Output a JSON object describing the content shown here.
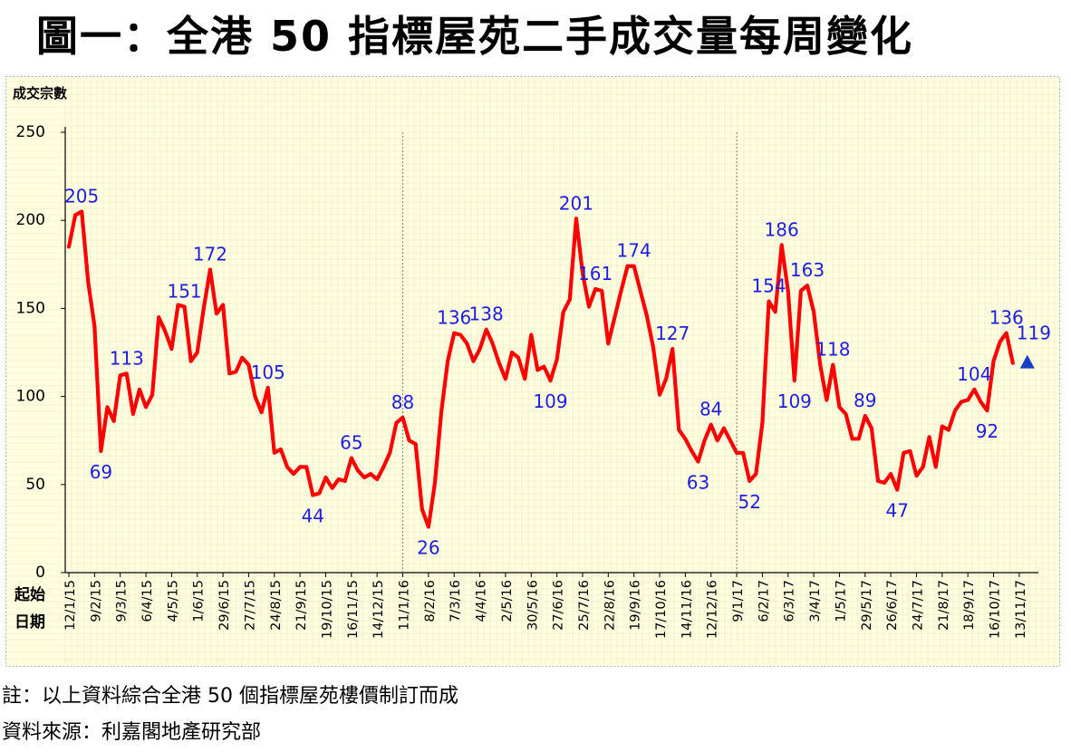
{
  "title": "圖一：全港 50 指標屋苑二手成交量每周變化",
  "notes": {
    "note": "註：以上資料綜合全港 50 個指標屋苑樓價制訂而成",
    "source": "資料來源：利嘉閣地產研究部"
  },
  "chart_data": {
    "type": "line",
    "ylabel": "成交宗數",
    "xlabel": "起始日期",
    "ylim": [
      0,
      250
    ],
    "yticks": [
      0,
      50,
      100,
      150,
      200,
      250
    ],
    "background_color": "#ffffe0",
    "line_color": "#ff0000",
    "label_color": "#1e1edc",
    "grid": true,
    "x_tick_labels": [
      "12/1/15",
      "9/2/15",
      "9/3/15",
      "6/4/15",
      "4/5/15",
      "1/6/15",
      "29/6/15",
      "27/7/15",
      "24/8/15",
      "21/9/15",
      "19/10/15",
      "16/11/15",
      "14/12/15",
      "11/1/16",
      "8/2/16",
      "7/3/16",
      "4/4/16",
      "2/5/16",
      "30/5/16",
      "27/6/16",
      "25/7/16",
      "22/8/16",
      "19/9/16",
      "17/10/16",
      "14/11/16",
      "12/12/16",
      "9/1/17",
      "6/2/17",
      "6/3/17",
      "3/4/17",
      "1/5/17",
      "29/5/17",
      "26/6/17",
      "24/7/17",
      "21/8/17",
      "18/9/17",
      "16/10/17",
      "13/11/17"
    ],
    "year_dividers_at_week": [
      52,
      104
    ],
    "values": [
      185,
      203,
      205,
      165,
      140,
      69,
      94,
      86,
      112,
      113,
      90,
      104,
      94,
      101,
      145,
      137,
      127,
      152,
      151,
      120,
      125,
      150,
      172,
      147,
      152,
      113,
      114,
      122,
      118,
      100,
      91,
      105,
      68,
      70,
      60,
      56,
      60,
      60,
      44,
      45,
      54,
      48,
      53,
      52,
      65,
      58,
      54,
      56,
      53,
      60,
      68,
      85,
      88,
      75,
      73,
      36,
      26,
      51,
      91,
      120,
      136,
      135,
      130,
      120,
      127,
      138,
      130,
      119,
      110,
      125,
      122,
      110,
      135,
      115,
      117,
      109,
      121,
      148,
      155,
      201,
      170,
      151,
      161,
      160,
      130,
      145,
      160,
      174,
      174,
      160,
      146,
      128,
      101,
      110,
      127,
      81,
      76,
      69,
      63,
      75,
      84,
      75,
      82,
      75,
      68,
      68,
      52,
      56,
      85,
      154,
      148,
      186,
      160,
      109,
      160,
      163,
      148,
      118,
      98,
      118,
      94,
      90,
      76,
      76,
      89,
      82,
      52,
      51,
      56,
      47,
      68,
      69,
      55,
      60,
      77,
      60,
      83,
      81,
      92,
      97,
      98,
      104,
      97,
      92,
      120,
      131,
      136,
      119
    ],
    "latest_marker": {
      "value": 119,
      "shape": "triangle",
      "color": "#1a3fc4"
    },
    "annotations": [
      {
        "index": 2,
        "text": "205",
        "pos": "above"
      },
      {
        "index": 5,
        "text": "69",
        "pos": "below"
      },
      {
        "index": 9,
        "text": "113",
        "pos": "above"
      },
      {
        "index": 18,
        "text": "151",
        "pos": "above"
      },
      {
        "index": 22,
        "text": "172",
        "pos": "above"
      },
      {
        "index": 31,
        "text": "105",
        "pos": "above"
      },
      {
        "index": 38,
        "text": "44",
        "pos": "below"
      },
      {
        "index": 44,
        "text": "65",
        "pos": "above"
      },
      {
        "index": 52,
        "text": "88",
        "pos": "above"
      },
      {
        "index": 56,
        "text": "26",
        "pos": "below"
      },
      {
        "index": 60,
        "text": "136",
        "pos": "above"
      },
      {
        "index": 65,
        "text": "138",
        "pos": "above"
      },
      {
        "index": 75,
        "text": "109",
        "pos": "below"
      },
      {
        "index": 79,
        "text": "201",
        "pos": "above"
      },
      {
        "index": 82,
        "text": "161",
        "pos": "above"
      },
      {
        "index": 88,
        "text": "174",
        "pos": "above"
      },
      {
        "index": 94,
        "text": "127",
        "pos": "above"
      },
      {
        "index": 98,
        "text": "63",
        "pos": "below"
      },
      {
        "index": 100,
        "text": "84",
        "pos": "above"
      },
      {
        "index": 106,
        "text": "52",
        "pos": "below"
      },
      {
        "index": 109,
        "text": "154",
        "pos": "above"
      },
      {
        "index": 111,
        "text": "186",
        "pos": "above"
      },
      {
        "index": 113,
        "text": "109",
        "pos": "below"
      },
      {
        "index": 115,
        "text": "163",
        "pos": "above"
      },
      {
        "index": 119,
        "text": "118",
        "pos": "above"
      },
      {
        "index": 124,
        "text": "89",
        "pos": "above"
      },
      {
        "index": 129,
        "text": "47",
        "pos": "below"
      },
      {
        "index": 141,
        "text": "104",
        "pos": "above"
      },
      {
        "index": 143,
        "text": "92",
        "pos": "below"
      },
      {
        "index": 146,
        "text": "136",
        "pos": "above"
      },
      {
        "index": 147,
        "text": "119",
        "pos": "right"
      }
    ]
  }
}
